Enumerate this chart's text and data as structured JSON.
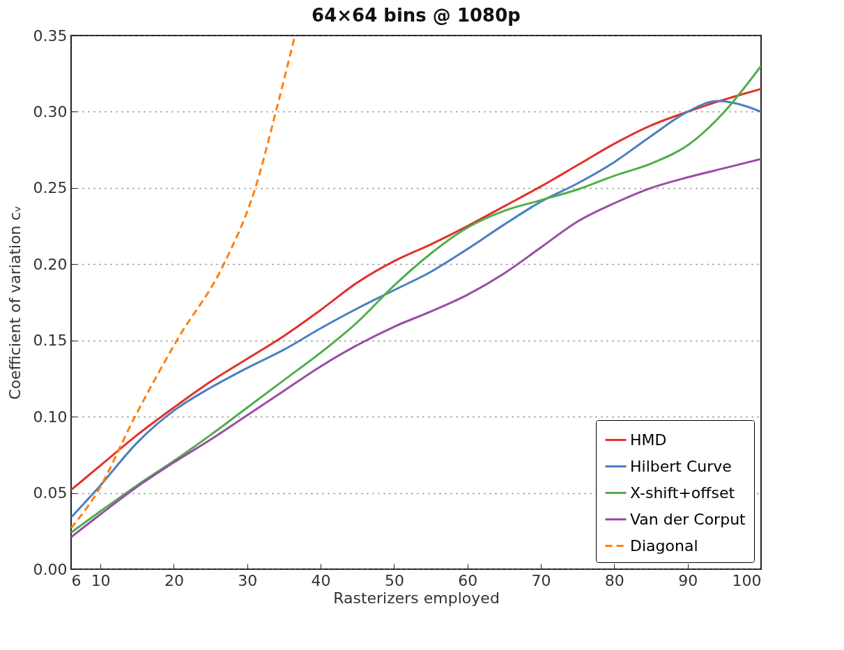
{
  "chart_data": {
    "type": "line",
    "title": "64×64 bins @ 1080p",
    "xlabel": "Rasterizers employed",
    "ylabel": "Coefficient of variation cᵥ",
    "xlim": [
      6,
      100
    ],
    "xticks": [
      6,
      10,
      20,
      30,
      40,
      50,
      60,
      70,
      80,
      90,
      100
    ],
    "ylim": [
      0,
      0.35
    ],
    "yticks": [
      {
        "value": 0,
        "label": "0.00"
      },
      {
        "value": 0.05,
        "label": "0.05"
      },
      {
        "value": 0.1,
        "label": "0.10"
      },
      {
        "value": 0.15,
        "label": "0.15"
      },
      {
        "value": 0.2,
        "label": "0.20"
      },
      {
        "value": 0.25,
        "label": "0.25"
      },
      {
        "value": 0.3,
        "label": "0.30"
      },
      {
        "value": 0.35,
        "label": "0.35"
      }
    ],
    "grid": "y",
    "legend": "bottom right",
    "marker": "none",
    "series": [
      {
        "name": "HMD",
        "color": "#e3302a",
        "x": [
          6,
          10,
          15,
          20,
          25,
          30,
          35,
          40,
          45,
          50,
          55,
          60,
          65,
          70,
          75,
          80,
          85,
          90,
          95,
          100
        ],
        "values": [
          0.052,
          0.068,
          0.088,
          0.106,
          0.123,
          0.138,
          0.153,
          0.17,
          0.188,
          0.202,
          0.213,
          0.225,
          0.238,
          0.251,
          0.265,
          0.279,
          0.291,
          0.3,
          0.308,
          0.315
        ]
      },
      {
        "name": "Hilbert Curve",
        "color": "#4a7fbf",
        "x": [
          6,
          10,
          15,
          20,
          25,
          30,
          35,
          40,
          45,
          50,
          55,
          60,
          65,
          70,
          75,
          80,
          85,
          90,
          94,
          97,
          100
        ],
        "values": [
          0.034,
          0.055,
          0.083,
          0.104,
          0.119,
          0.132,
          0.144,
          0.158,
          0.171,
          0.183,
          0.195,
          0.21,
          0.226,
          0.241,
          0.253,
          0.267,
          0.284,
          0.3,
          0.307,
          0.305,
          0.3
        ]
      },
      {
        "name": "X-shift+offset",
        "color": "#4daf4a",
        "x": [
          6,
          10,
          15,
          20,
          25,
          30,
          35,
          40,
          45,
          50,
          55,
          60,
          65,
          70,
          75,
          80,
          85,
          90,
          95,
          100
        ],
        "values": [
          0.024,
          0.038,
          0.055,
          0.071,
          0.088,
          0.106,
          0.124,
          0.142,
          0.162,
          0.186,
          0.207,
          0.224,
          0.235,
          0.242,
          0.249,
          0.258,
          0.266,
          0.278,
          0.3,
          0.33
        ]
      },
      {
        "name": "Van der Corput",
        "color": "#984ea3",
        "x": [
          6,
          10,
          15,
          20,
          25,
          30,
          35,
          40,
          45,
          50,
          55,
          60,
          65,
          70,
          75,
          80,
          85,
          90,
          95,
          100
        ],
        "values": [
          0.021,
          0.036,
          0.054,
          0.07,
          0.085,
          0.101,
          0.117,
          0.133,
          0.147,
          0.159,
          0.169,
          0.18,
          0.194,
          0.211,
          0.228,
          0.24,
          0.25,
          0.257,
          0.263,
          0.269
        ]
      },
      {
        "name": "Diagonal",
        "color": "#ff7f0e",
        "line_style": "dashed",
        "x": [
          6,
          9.5,
          14.7,
          20.4,
          26.8,
          31.1,
          33.9,
          36.5
        ],
        "values": [
          0.027,
          0.05,
          0.1,
          0.15,
          0.2,
          0.25,
          0.3,
          0.35
        ]
      }
    ]
  }
}
